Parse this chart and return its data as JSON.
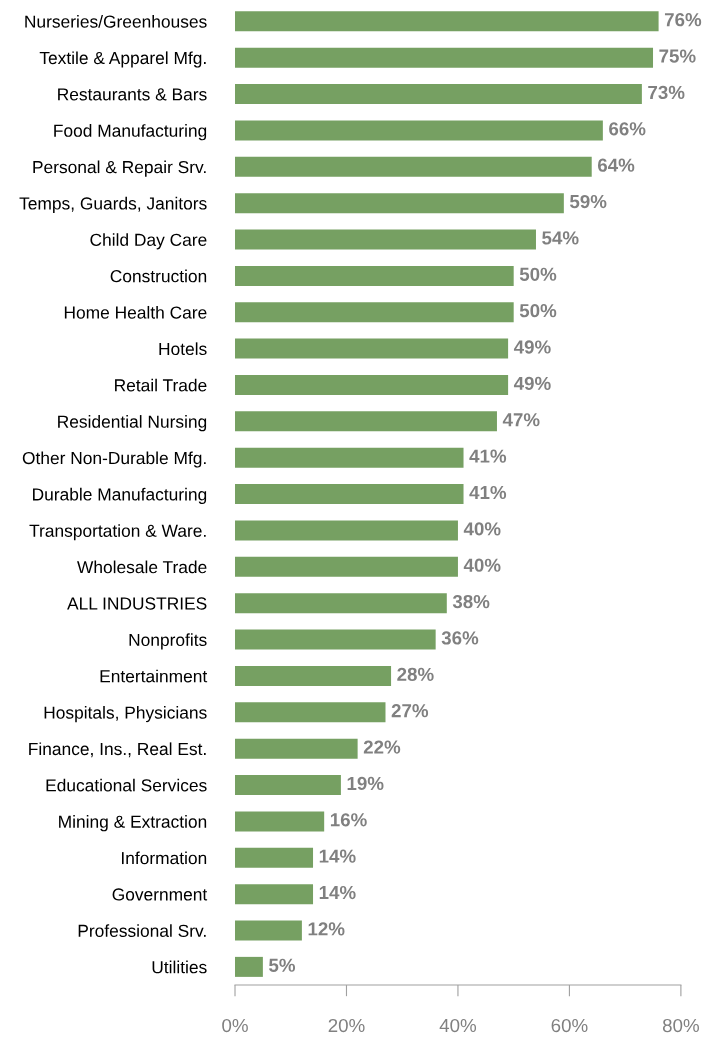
{
  "chart_data": {
    "type": "bar",
    "orientation": "horizontal",
    "categories": [
      "Nurseries/Greenhouses",
      "Textile & Apparel Mfg.",
      "Restaurants & Bars",
      "Food Manufacturing",
      "Personal & Repair Srv.",
      "Temps, Guards, Janitors",
      "Child Day Care",
      "Construction",
      "Home Health Care",
      "Hotels",
      "Retail Trade",
      "Residential Nursing",
      "Other Non-Durable Mfg.",
      "Durable Manufacturing",
      "Transportation & Ware.",
      "Wholesale Trade",
      "ALL INDUSTRIES",
      "Nonprofits",
      "Entertainment",
      "Hospitals, Physicians",
      "Finance, Ins., Real Est.",
      "Educational Services",
      "Mining & Extraction",
      "Information",
      "Government",
      "Professional Srv.",
      "Utilities"
    ],
    "values": [
      76,
      75,
      73,
      66,
      64,
      59,
      54,
      50,
      50,
      49,
      49,
      47,
      41,
      41,
      40,
      40,
      38,
      36,
      28,
      27,
      22,
      19,
      16,
      14,
      14,
      12,
      5
    ],
    "value_labels": [
      "76%",
      "75%",
      "73%",
      "66%",
      "64%",
      "59%",
      "54%",
      "50%",
      "50%",
      "49%",
      "49%",
      "47%",
      "41%",
      "41%",
      "40%",
      "40%",
      "38%",
      "36%",
      "28%",
      "27%",
      "22%",
      "19%",
      "16%",
      "14%",
      "14%",
      "12%",
      "5%"
    ],
    "color": "#76a062",
    "xlim": [
      0,
      80
    ],
    "xticks": [
      {
        "value": 0,
        "label": "0%"
      },
      {
        "value": 20,
        "label": "20%"
      },
      {
        "value": 40,
        "label": "40%"
      },
      {
        "value": 60,
        "label": "60%"
      },
      {
        "value": 80,
        "label": "80%"
      }
    ],
    "grid": false,
    "legend": false
  }
}
